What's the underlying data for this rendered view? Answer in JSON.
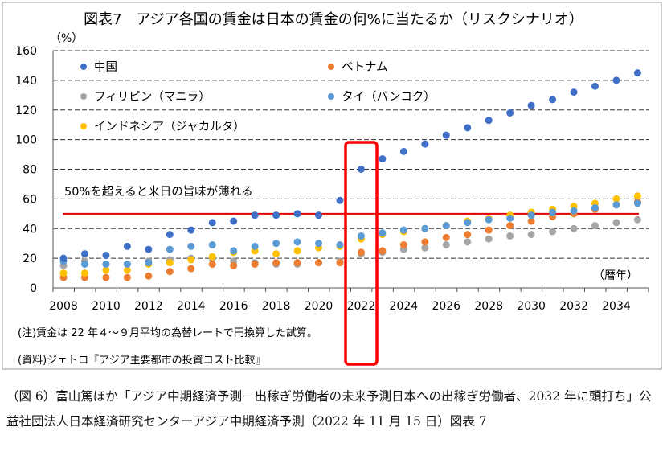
{
  "chart_data": {
    "type": "scatter",
    "title": "図表7　アジア各国の賃金は日本の賃金の何%に当たるか（リスクシナリオ）",
    "ylabel": "（%）",
    "xlabel": "（暦年）",
    "ylim": [
      0,
      160
    ],
    "yticks": [
      0,
      20,
      40,
      60,
      80,
      100,
      120,
      140,
      160
    ],
    "xticks": [
      2008,
      2010,
      2012,
      2014,
      2016,
      2018,
      2020,
      2022,
      2024,
      2026,
      2028,
      2030,
      2032,
      2034
    ],
    "grid": true,
    "legend_position": "top-left",
    "x": [
      2008,
      2009,
      2010,
      2011,
      2012,
      2013,
      2014,
      2015,
      2016,
      2017,
      2018,
      2019,
      2020,
      2021,
      2022,
      2023,
      2024,
      2025,
      2026,
      2027,
      2028,
      2029,
      2030,
      2031,
      2032,
      2033,
      2034,
      2035
    ],
    "series": [
      {
        "name": "中国",
        "color": "#3F6FC6",
        "values": [
          20,
          23,
          22,
          28,
          26,
          36,
          39,
          44,
          45,
          49,
          49,
          50,
          49,
          59,
          80,
          87,
          92,
          97,
          103,
          108,
          113,
          118,
          123,
          127,
          132,
          136,
          140,
          145
        ]
      },
      {
        "name": "ベトナム",
        "color": "#ED7D31",
        "values": [
          7,
          7,
          7,
          7,
          8,
          11,
          13,
          16,
          15,
          16,
          17,
          17,
          17,
          17,
          24,
          25,
          29,
          31,
          34,
          36,
          39,
          42,
          45,
          48,
          50,
          53,
          56,
          58
        ]
      },
      {
        "name": "フィリピン（マニラ）",
        "color": "#A5A5A5",
        "values": [
          15,
          18,
          16,
          16,
          18,
          19,
          20,
          20,
          18,
          17,
          16,
          16,
          17,
          18,
          23,
          24,
          26,
          27,
          29,
          31,
          33,
          35,
          36,
          38,
          40,
          42,
          44,
          46
        ]
      },
      {
        "name": "タイ（バンコク）",
        "color": "#5B9BD5",
        "values": [
          18,
          16,
          16,
          16,
          17,
          26,
          28,
          29,
          25,
          28,
          30,
          31,
          30,
          29,
          35,
          37,
          39,
          40,
          42,
          44,
          46,
          47,
          49,
          51,
          52,
          54,
          56,
          57
        ]
      },
      {
        "name": "インドネシア（ジャカルタ）",
        "color": "#FFC000",
        "values": [
          10,
          10,
          12,
          12,
          16,
          17,
          19,
          21,
          24,
          25,
          23,
          25,
          27,
          28,
          33,
          36,
          38,
          40,
          42,
          45,
          47,
          49,
          51,
          53,
          55,
          57,
          60,
          62
        ]
      }
    ],
    "reference_line": {
      "value": 50,
      "color": "#E00000",
      "label": "50%を超えると来日の旨味が薄れる"
    },
    "highlight": {
      "x": 2022,
      "color": "#FF0000"
    }
  },
  "notes": {
    "note": "(注)賃金は 22 年４～９月平均の為替レートで円換算した試算。",
    "source": "(資料)ジェトロ『アジア主要都市の投資コスト比較』"
  },
  "caption": "（図 6）富山篤ほか「アジア中期経済予測－出稼ぎ労働者の未来予測日本への出稼ぎ労働者、2032 年に頭打ち」公益社団法人日本経済研究センターアジア中期経済予測（2022 年 11 月 15 日）図表 7"
}
